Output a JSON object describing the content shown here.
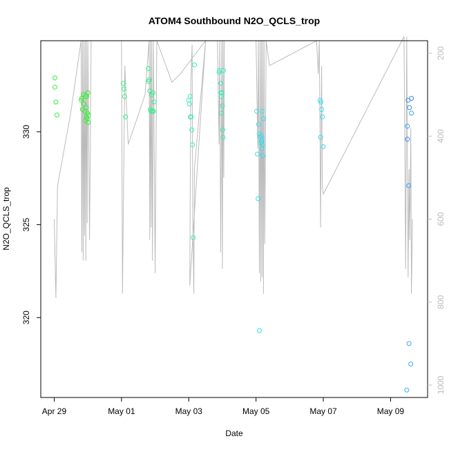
{
  "chart_data": {
    "type": "scatter",
    "title": "ATOM4 Southbound N2O_QCLS_trop",
    "xlabel": "Date",
    "ylabel": "N2O_QCLS_trop",
    "x_ticks": [
      "Apr 29",
      "May 01",
      "May 03",
      "May 05",
      "May 07",
      "May 09"
    ],
    "x_tick_days": [
      0,
      2,
      4,
      6,
      8,
      10
    ],
    "y_ticks": [
      320,
      325,
      330
    ],
    "y2_ticks": [
      200,
      400,
      600,
      800,
      1000
    ],
    "xlim_days": [
      -0.4,
      11.1
    ],
    "ylim": [
      315.7,
      334.9
    ],
    "y2lim": [
      1030,
      170
    ],
    "y_inverted": true,
    "y2_inverted": true,
    "grid": false,
    "colors": {
      "green": "#33ee33",
      "spring": "#33ee88",
      "teal": "#33eebb",
      "cyan": "#33ddee",
      "sky": "#33aaee",
      "blue": "#3388ee",
      "pressure_line": "#bbbbbb",
      "axis": "#000000",
      "y2_axis": "#bbbbbb"
    },
    "series": [
      {
        "kind": "points",
        "color": "green",
        "points": [
          [
            0.02,
            332.9
          ],
          [
            0.02,
            332.4
          ],
          [
            0.05,
            331.6
          ],
          [
            0.08,
            330.9
          ],
          [
            0.8,
            331.7
          ],
          [
            0.82,
            331.8
          ],
          [
            0.84,
            331.2
          ],
          [
            0.86,
            332.0
          ],
          [
            0.88,
            331.5
          ],
          [
            0.9,
            331.1
          ],
          [
            0.92,
            331.9
          ],
          [
            0.93,
            330.6
          ],
          [
            0.95,
            331.3
          ],
          [
            0.96,
            330.8
          ],
          [
            0.97,
            331.9
          ],
          [
            0.98,
            330.7
          ],
          [
            0.99,
            331.0
          ],
          [
            1.0,
            332.1
          ],
          [
            1.01,
            330.5
          ],
          [
            1.02,
            330.9
          ]
        ]
      },
      {
        "kind": "points",
        "color": "spring",
        "points": [
          [
            2.05,
            332.6
          ],
          [
            2.07,
            332.3
          ],
          [
            2.09,
            331.9
          ],
          [
            2.12,
            330.8
          ],
          [
            2.8,
            333.4
          ],
          [
            2.81,
            332.7
          ],
          [
            2.82,
            332.8
          ],
          [
            2.84,
            332.2
          ],
          [
            2.86,
            331.2
          ],
          [
            2.88,
            331.1
          ],
          [
            2.9,
            332.0
          ],
          [
            2.92,
            331.1
          ],
          [
            2.94,
            332.1
          ],
          [
            2.95,
            331.1
          ],
          [
            2.97,
            331.6
          ]
        ]
      },
      {
        "kind": "points",
        "color": "teal",
        "points": [
          [
            4.0,
            331.7
          ],
          [
            4.02,
            331.5
          ],
          [
            4.04,
            331.9
          ],
          [
            4.05,
            330.8
          ],
          [
            4.07,
            330.8
          ],
          [
            4.09,
            330.1
          ],
          [
            4.11,
            329.3
          ],
          [
            4.13,
            324.3
          ],
          [
            4.17,
            333.6
          ],
          [
            4.9,
            333.2
          ],
          [
            4.92,
            333.3
          ],
          [
            4.95,
            332.6
          ],
          [
            4.96,
            332.1
          ],
          [
            4.97,
            331.9
          ],
          [
            4.98,
            331.0
          ],
          [
            4.99,
            332.1
          ],
          [
            5.0,
            331.4
          ],
          [
            5.01,
            330.1
          ],
          [
            5.02,
            329.7
          ],
          [
            5.03,
            333.3
          ]
        ]
      },
      {
        "kind": "points",
        "color": "cyan",
        "points": [
          [
            6.02,
            331.1
          ],
          [
            6.04,
            328.8
          ],
          [
            6.06,
            326.4
          ],
          [
            6.08,
            330.4
          ],
          [
            6.1,
            329.9
          ],
          [
            6.12,
            329.7
          ],
          [
            6.14,
            329.4
          ],
          [
            6.15,
            329.8
          ],
          [
            6.16,
            329.5
          ],
          [
            6.17,
            329.1
          ],
          [
            6.18,
            329.6
          ],
          [
            6.19,
            329.3
          ],
          [
            6.2,
            328.7
          ],
          [
            6.22,
            330.7
          ],
          [
            6.1,
            319.3
          ],
          [
            6.18,
            331.1
          ],
          [
            7.9,
            331.7
          ],
          [
            7.93,
            331.6
          ],
          [
            7.95,
            331.2
          ],
          [
            7.97,
            330.8
          ],
          [
            8.0,
            329.2
          ],
          [
            7.92,
            329.7
          ]
        ]
      },
      {
        "kind": "points",
        "color": "sky",
        "points": [
          [
            10.5,
            330.3
          ],
          [
            10.54,
            327.1
          ],
          [
            10.55,
            318.6
          ],
          [
            10.6,
            317.5
          ],
          [
            10.62,
            331.0
          ],
          [
            10.48,
            316.1
          ]
        ]
      },
      {
        "kind": "points",
        "color": "blue",
        "points": [
          [
            10.52,
            331.7
          ],
          [
            10.56,
            331.3
          ],
          [
            10.62,
            331.8
          ],
          [
            10.5,
            329.6
          ]
        ]
      }
    ],
    "pressure_profile": {
      "color": "pressure_line",
      "axis": "y2",
      "points": [
        [
          0.0,
          600
        ],
        [
          0.05,
          790
        ],
        [
          0.1,
          520
        ],
        [
          0.5,
          340
        ],
        [
          0.8,
          170
        ],
        [
          0.82,
          680
        ],
        [
          0.84,
          170
        ],
        [
          0.86,
          700
        ],
        [
          0.88,
          170
        ],
        [
          0.9,
          640
        ],
        [
          0.92,
          170
        ],
        [
          0.94,
          700
        ],
        [
          0.96,
          170
        ],
        [
          0.98,
          610
        ],
        [
          1.0,
          170
        ],
        [
          1.05,
          650
        ],
        [
          1.1,
          170
        ],
        [
          2.0,
          170
        ],
        [
          2.03,
          780
        ],
        [
          2.1,
          230
        ],
        [
          2.2,
          420
        ],
        [
          2.7,
          300
        ],
        [
          2.82,
          170
        ],
        [
          2.84,
          650
        ],
        [
          2.86,
          170
        ],
        [
          2.88,
          620
        ],
        [
          2.9,
          170
        ],
        [
          2.92,
          700
        ],
        [
          2.95,
          170
        ],
        [
          3.0,
          730
        ],
        [
          3.05,
          170
        ],
        [
          3.5,
          270
        ],
        [
          3.75,
          250
        ],
        [
          4.5,
          170
        ],
        [
          4.03,
          760
        ],
        [
          4.06,
          270
        ],
        [
          4.1,
          180
        ],
        [
          4.12,
          600
        ],
        [
          4.15,
          780
        ],
        [
          4.17,
          480
        ],
        [
          4.5,
          170
        ],
        [
          4.85,
          170
        ],
        [
          4.9,
          420
        ],
        [
          4.92,
          170
        ],
        [
          4.95,
          680
        ],
        [
          4.98,
          170
        ],
        [
          5.0,
          720
        ],
        [
          5.02,
          170
        ],
        [
          5.04,
          500
        ],
        [
          5.06,
          170
        ],
        [
          6.0,
          170
        ],
        [
          6.05,
          430
        ],
        [
          6.07,
          170
        ],
        [
          6.1,
          730
        ],
        [
          6.12,
          170
        ],
        [
          6.14,
          750
        ],
        [
          6.16,
          170
        ],
        [
          6.18,
          740
        ],
        [
          6.2,
          170
        ],
        [
          6.22,
          780
        ],
        [
          6.24,
          170
        ],
        [
          6.26,
          660
        ],
        [
          6.3,
          170
        ],
        [
          6.4,
          230
        ],
        [
          7.8,
          170
        ],
        [
          7.85,
          250
        ],
        [
          7.88,
          170
        ],
        [
          7.9,
          370
        ],
        [
          7.92,
          620
        ],
        [
          7.95,
          230
        ],
        [
          7.97,
          520
        ],
        [
          8.0,
          540
        ],
        [
          10.4,
          160
        ],
        [
          10.45,
          720
        ],
        [
          10.48,
          160
        ],
        [
          10.52,
          740
        ],
        [
          10.55,
          480
        ],
        [
          10.57,
          650
        ],
        [
          10.6,
          380
        ],
        [
          10.62,
          780
        ],
        [
          10.65,
          600
        ]
      ]
    }
  }
}
